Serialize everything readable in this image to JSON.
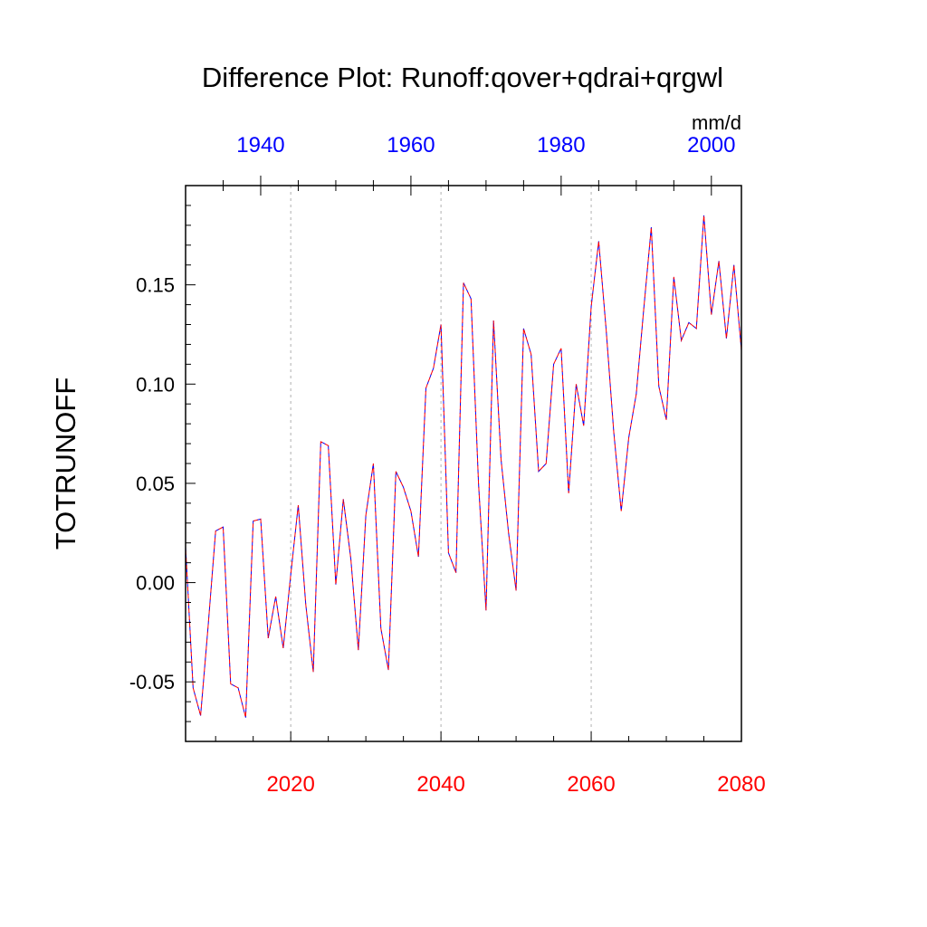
{
  "chart_data": {
    "type": "line",
    "title": "Difference Plot: Runoff:qover+qdrai+qrgwl",
    "units": "mm/d",
    "ylabel": "TOTRUNOFF",
    "xlabel": "",
    "ylim": [
      -0.08,
      0.2
    ],
    "xlim": [
      2006,
      2080
    ],
    "top_xlim": [
      1930,
      2004
    ],
    "yticks": [
      -0.05,
      0.0,
      0.05,
      0.1,
      0.15
    ],
    "ytick_labels": [
      "-0.05",
      "0.00",
      "0.05",
      "0.10",
      "0.15"
    ],
    "xticks_bottom": [
      2020,
      2040,
      2060,
      2080
    ],
    "xtick_labels_bottom": [
      "2020",
      "2040",
      "2060",
      "2080"
    ],
    "xticks_top": [
      1940,
      1960,
      1980,
      2000
    ],
    "xtick_labels_top": [
      "1940",
      "1960",
      "1980",
      "2000"
    ],
    "bottom_axis_color": "#ff0000",
    "top_axis_color": "#0000ff",
    "gridlines_x": [
      2020,
      2040,
      2060
    ],
    "grid": "vertical dashed at major bottom ticks",
    "series": [
      {
        "color": "#0000ff",
        "dash": "dashed",
        "x": [
          2006,
          2007,
          2008,
          2009,
          2010,
          2011,
          2012,
          2013,
          2014,
          2015,
          2016,
          2017,
          2018,
          2019,
          2020,
          2021,
          2022,
          2023,
          2024,
          2025,
          2026,
          2027,
          2028,
          2029,
          2030,
          2031,
          2032,
          2033,
          2034,
          2035,
          2036,
          2037,
          2038,
          2039,
          2040,
          2041,
          2042,
          2043,
          2044,
          2045,
          2046,
          2047,
          2048,
          2049,
          2050,
          2051,
          2052,
          2053,
          2054,
          2055,
          2056,
          2057,
          2058,
          2059,
          2060,
          2061,
          2062,
          2063,
          2064,
          2065,
          2066,
          2067,
          2068,
          2069,
          2070,
          2071,
          2072,
          2073,
          2074,
          2075,
          2076,
          2077,
          2078,
          2079,
          2080
        ],
        "values": [
          0.018,
          -0.053,
          -0.067,
          -0.022,
          0.026,
          0.028,
          -0.051,
          -0.053,
          -0.068,
          0.031,
          0.032,
          -0.028,
          -0.007,
          -0.033,
          0.004,
          0.039,
          -0.011,
          -0.045,
          0.071,
          0.069,
          -0.001,
          0.042,
          0.012,
          -0.034,
          0.034,
          0.06,
          -0.023,
          -0.044,
          0.056,
          0.048,
          0.036,
          0.013,
          0.098,
          0.108,
          0.13,
          0.015,
          0.005,
          0.151,
          0.143,
          0.05,
          -0.014,
          0.132,
          0.062,
          0.025,
          -0.004,
          0.128,
          0.115,
          0.056,
          0.06,
          0.11,
          0.118,
          0.045,
          0.1,
          0.079,
          0.139,
          0.172,
          0.127,
          0.076,
          0.036,
          0.073,
          0.095,
          0.138,
          0.179,
          0.099,
          0.082,
          0.154,
          0.122,
          0.131,
          0.128,
          0.185,
          0.135,
          0.162,
          0.123,
          0.16,
          0.117
        ]
      },
      {
        "color": "#ff0000",
        "dash": "dashed",
        "x": [
          2006,
          2007,
          2008,
          2009,
          2010,
          2011,
          2012,
          2013,
          2014,
          2015,
          2016,
          2017,
          2018,
          2019,
          2020,
          2021,
          2022,
          2023,
          2024,
          2025,
          2026,
          2027,
          2028,
          2029,
          2030,
          2031,
          2032,
          2033,
          2034,
          2035,
          2036,
          2037,
          2038,
          2039,
          2040,
          2041,
          2042,
          2043,
          2044,
          2045,
          2046,
          2047,
          2048,
          2049,
          2050,
          2051,
          2052,
          2053,
          2054,
          2055,
          2056,
          2057,
          2058,
          2059,
          2060,
          2061,
          2062,
          2063,
          2064,
          2065,
          2066,
          2067,
          2068,
          2069,
          2070,
          2071,
          2072,
          2073,
          2074,
          2075,
          2076,
          2077,
          2078,
          2079,
          2080
        ],
        "values": [
          0.018,
          -0.053,
          -0.067,
          -0.022,
          0.026,
          0.028,
          -0.051,
          -0.053,
          -0.068,
          0.031,
          0.032,
          -0.028,
          -0.007,
          -0.033,
          0.004,
          0.039,
          -0.011,
          -0.045,
          0.071,
          0.069,
          -0.001,
          0.042,
          0.012,
          -0.034,
          0.034,
          0.06,
          -0.023,
          -0.044,
          0.056,
          0.048,
          0.036,
          0.013,
          0.098,
          0.108,
          0.13,
          0.015,
          0.005,
          0.151,
          0.143,
          0.05,
          -0.014,
          0.132,
          0.062,
          0.025,
          -0.004,
          0.128,
          0.115,
          0.056,
          0.06,
          0.11,
          0.118,
          0.045,
          0.1,
          0.079,
          0.139,
          0.172,
          0.127,
          0.076,
          0.036,
          0.073,
          0.095,
          0.138,
          0.179,
          0.099,
          0.082,
          0.154,
          0.122,
          0.131,
          0.128,
          0.185,
          0.135,
          0.162,
          0.123,
          0.16,
          0.117
        ]
      }
    ]
  }
}
